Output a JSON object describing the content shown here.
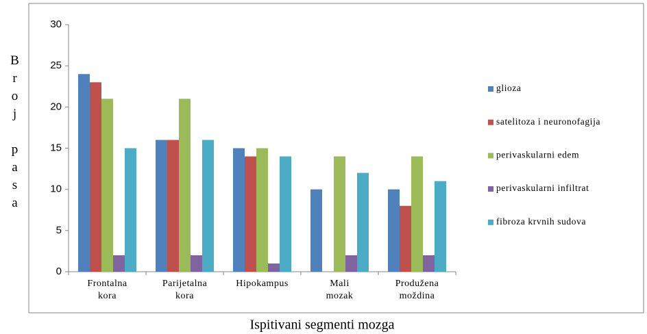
{
  "chart_data": {
    "type": "bar",
    "y_label": "Broj pasa",
    "x_label": "Ispitivani segmenti mozga",
    "categories": [
      "Frontalna kora",
      "Parijetalna kora",
      "Hipokampus",
      "Mali mozak",
      "Produžena moždina"
    ],
    "series": [
      {
        "name": "glioza",
        "color": "#4f81bd",
        "values": [
          24,
          16,
          15,
          10,
          10
        ]
      },
      {
        "name": "satelitoza i neuronofagija",
        "color": "#c0504d",
        "values": [
          23,
          16,
          14,
          0,
          8
        ]
      },
      {
        "name": "perivaskularni edem",
        "color": "#9bbb59",
        "values": [
          21,
          21,
          15,
          14,
          14
        ]
      },
      {
        "name": "perivaskularni infiltrat",
        "color": "#8064a2",
        "values": [
          2,
          2,
          1,
          2,
          2
        ]
      },
      {
        "name": "fibroza krvnih sudova",
        "color": "#4bacc6",
        "values": [
          15,
          16,
          14,
          12,
          11
        ]
      }
    ],
    "ylim": [
      0,
      30
    ],
    "yticks": [
      0,
      5,
      10,
      15,
      20,
      25,
      30
    ],
    "grid": false,
    "legend": "right"
  }
}
